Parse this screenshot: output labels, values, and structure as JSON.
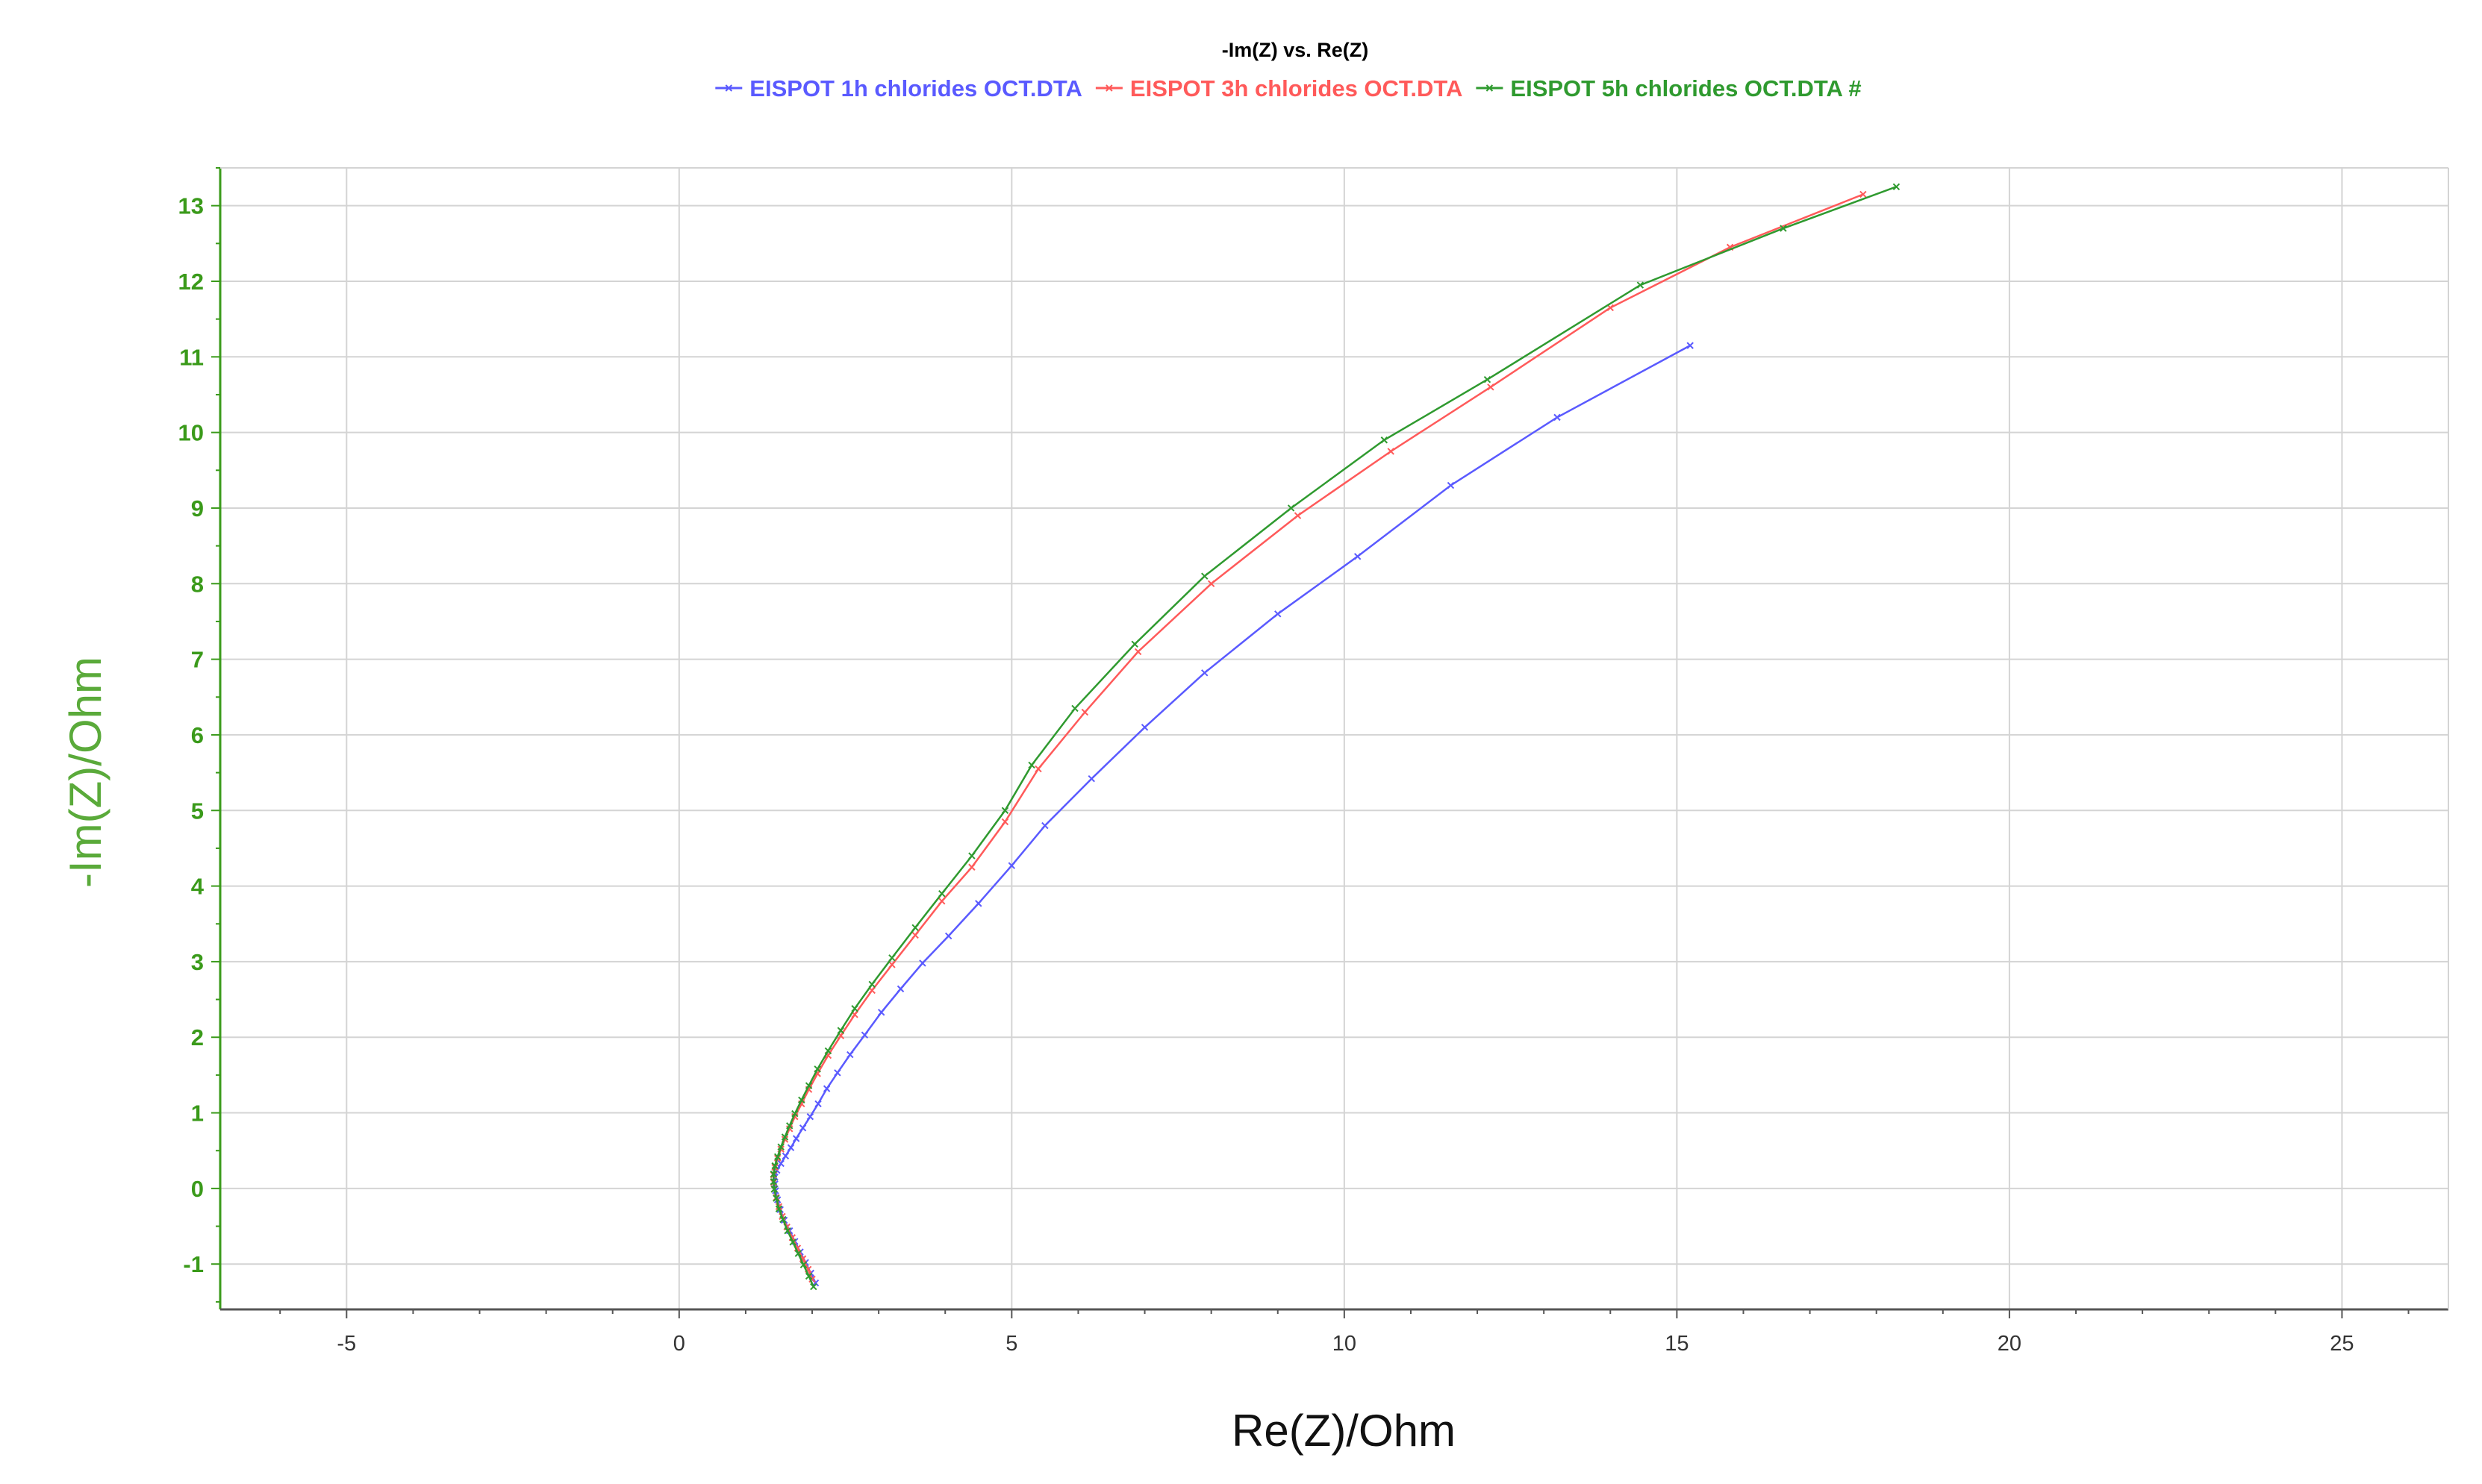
{
  "chart_data": {
    "type": "line",
    "title": "-Im(Z) vs. Re(Z)",
    "xlabel": "Re(Z)/Ohm",
    "ylabel": "-Im(Z)/Ohm",
    "xlim": [
      -6.9,
      26.6
    ],
    "ylim": [
      -1.6,
      13.5
    ],
    "x_ticks": [
      -5,
      0,
      5,
      10,
      15,
      20,
      25
    ],
    "y_ticks": [
      -1,
      0,
      1,
      2,
      3,
      4,
      5,
      6,
      7,
      8,
      9,
      10,
      11,
      12,
      13
    ],
    "grid": true,
    "legend_position": "top-center",
    "axis_color": "#3a9a1a",
    "y_label_color": "#5aaa3a",
    "series": [
      {
        "name": "EISPOT 1h chlorides OCT.DTA",
        "color": "#5a5aff",
        "x": [
          2.05,
          1.98,
          1.9,
          1.82,
          1.74,
          1.66,
          1.58,
          1.52,
          1.48,
          1.45,
          1.44,
          1.44,
          1.47,
          1.53,
          1.6,
          1.68,
          1.76,
          1.86,
          1.97,
          2.09,
          2.22,
          2.38,
          2.57,
          2.79,
          3.04,
          3.33,
          3.66,
          4.05,
          4.5,
          5.0,
          5.5,
          6.2,
          7.0,
          7.9,
          9.0,
          10.2,
          11.6,
          13.2,
          15.2
        ],
        "y": [
          -1.25,
          -1.12,
          -0.98,
          -0.84,
          -0.7,
          -0.56,
          -0.42,
          -0.28,
          -0.15,
          -0.03,
          0.06,
          0.15,
          0.24,
          0.33,
          0.43,
          0.54,
          0.66,
          0.8,
          0.95,
          1.12,
          1.32,
          1.53,
          1.77,
          2.03,
          2.33,
          2.64,
          2.98,
          3.34,
          3.77,
          4.27,
          4.8,
          5.42,
          6.1,
          6.82,
          7.6,
          8.36,
          9.3,
          10.2,
          11.15
        ]
      },
      {
        "name": "EISPOT 3h chlorides OCT.DTA",
        "color": "#ff5a5a",
        "x": [
          2.0,
          1.94,
          1.86,
          1.78,
          1.7,
          1.62,
          1.55,
          1.5,
          1.46,
          1.43,
          1.42,
          1.42,
          1.44,
          1.48,
          1.53,
          1.59,
          1.66,
          1.74,
          1.84,
          1.95,
          2.08,
          2.24,
          2.43,
          2.64,
          2.9,
          3.2,
          3.55,
          3.95,
          4.4,
          4.9,
          5.4,
          6.1,
          6.9,
          8.0,
          9.3,
          10.7,
          12.2,
          14.0,
          15.8,
          17.8
        ],
        "y": [
          -1.2,
          -1.07,
          -0.93,
          -0.79,
          -0.65,
          -0.51,
          -0.37,
          -0.24,
          -0.12,
          -0.01,
          0.08,
          0.18,
          0.28,
          0.4,
          0.52,
          0.65,
          0.79,
          0.95,
          1.12,
          1.31,
          1.52,
          1.76,
          2.02,
          2.3,
          2.62,
          2.96,
          3.35,
          3.8,
          4.25,
          4.85,
          5.55,
          6.3,
          7.1,
          8.0,
          8.9,
          9.75,
          10.6,
          11.65,
          12.45,
          13.15
        ]
      },
      {
        "name": "EISPOT 5h chlorides OCT.DTA #",
        "color": "#2f9a2f",
        "x": [
          2.02,
          1.95,
          1.87,
          1.79,
          1.71,
          1.63,
          1.56,
          1.5,
          1.46,
          1.43,
          1.42,
          1.42,
          1.44,
          1.48,
          1.53,
          1.59,
          1.66,
          1.74,
          1.84,
          1.95,
          2.08,
          2.24,
          2.43,
          2.64,
          2.9,
          3.2,
          3.55,
          3.95,
          4.4,
          4.9,
          5.3,
          5.95,
          6.85,
          7.9,
          9.2,
          10.6,
          12.15,
          14.45,
          16.6,
          18.3
        ],
        "y": [
          -1.3,
          -1.16,
          -1.01,
          -0.86,
          -0.71,
          -0.56,
          -0.41,
          -0.27,
          -0.13,
          -0.01,
          0.09,
          0.19,
          0.3,
          0.42,
          0.55,
          0.68,
          0.83,
          0.99,
          1.17,
          1.36,
          1.58,
          1.82,
          2.09,
          2.38,
          2.7,
          3.05,
          3.45,
          3.9,
          4.4,
          5.0,
          5.6,
          6.35,
          7.2,
          8.1,
          9.0,
          9.9,
          10.7,
          11.95,
          12.7,
          13.25
        ]
      }
    ]
  }
}
